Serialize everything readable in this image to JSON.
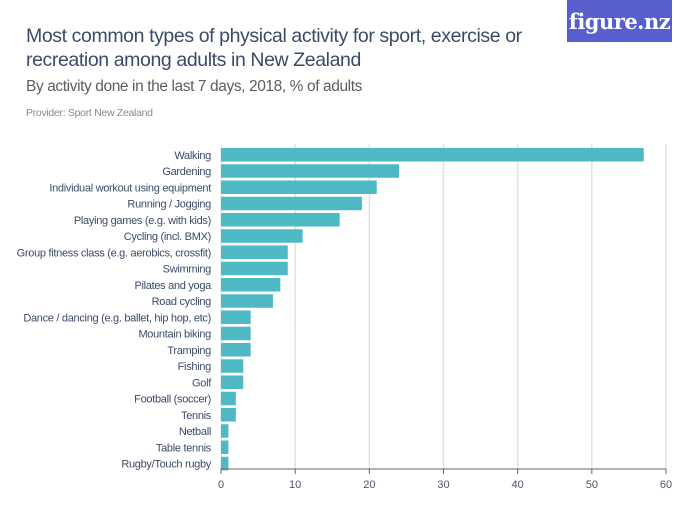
{
  "header": {
    "logo_text": "figure.nz",
    "title": "Most common types of physical activity for sport, exercise or recreation among adults in New Zealand",
    "subtitle": "By activity done in the last 7 days, 2018, % of adults",
    "provider": "Provider: Sport New Zealand"
  },
  "colors": {
    "bar": "#4fb8c5",
    "logo_bg": "#575fcc",
    "title": "#3b4a68",
    "gridline": "#e2e2e2",
    "axis": "#666666"
  },
  "chart_data": {
    "type": "bar",
    "orientation": "horizontal",
    "title": "Most common types of physical activity for sport, exercise or recreation among adults in New Zealand",
    "subtitle": "By activity done in the last 7 days, 2018, % of adults",
    "xlabel": "",
    "ylabel": "",
    "xlim": [
      0,
      60
    ],
    "xticks": [
      0,
      10,
      20,
      30,
      40,
      50,
      60
    ],
    "grid": true,
    "categories": [
      "Walking",
      "Gardening",
      "Individual workout using equipment",
      "Running / Jogging",
      "Playing games (e.g. with kids)",
      "Cycling (incl. BMX)",
      "Group fitness class (e.g. aerobics, crossfit)",
      "Swimming",
      "Pilates and yoga",
      "Road cycling",
      "Dance / dancing (e.g. ballet, hip hop, etc)",
      "Mountain biking",
      "Tramping",
      "Fishing",
      "Golf",
      "Football (soccer)",
      "Tennis",
      "Netball",
      "Table tennis",
      "Rugby/Touch rugby"
    ],
    "values": [
      57,
      24,
      21,
      19,
      16,
      11,
      9,
      9,
      8,
      7,
      4,
      4,
      4,
      3,
      3,
      2,
      2,
      1,
      1,
      1
    ],
    "unit": "% of adults"
  }
}
